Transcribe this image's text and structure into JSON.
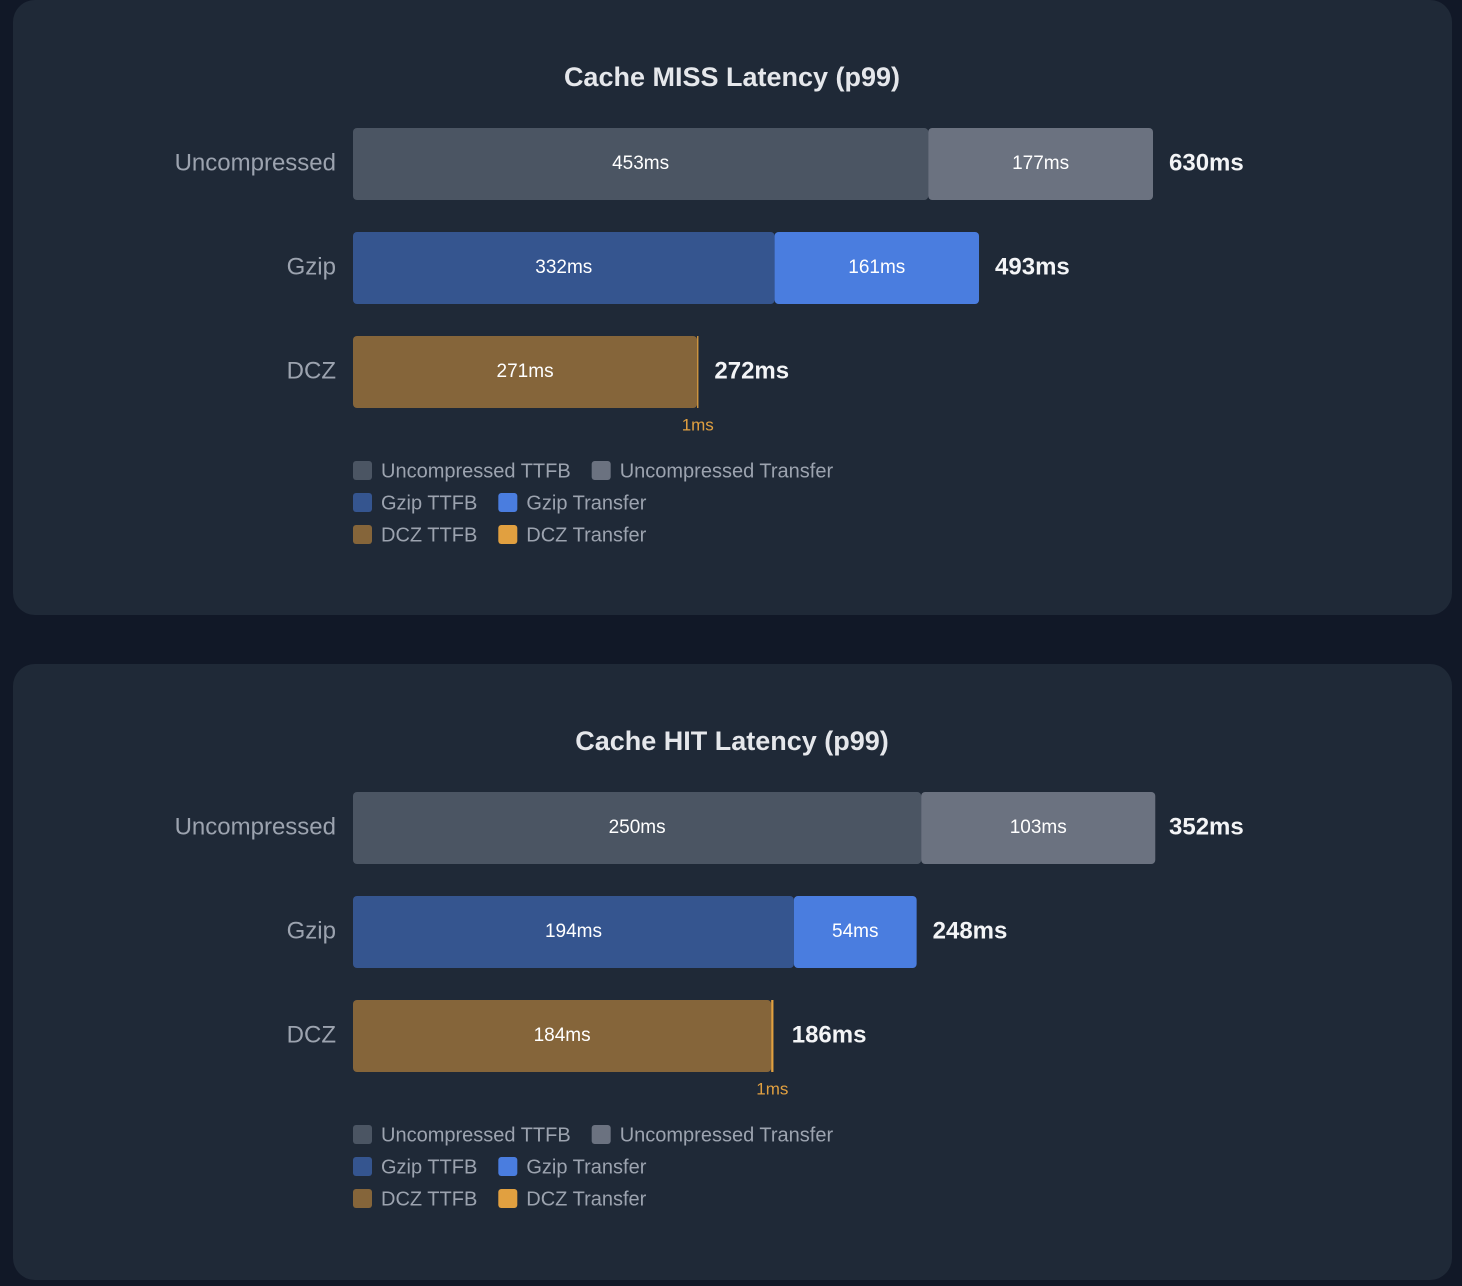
{
  "chart_data": [
    {
      "type": "stacked-bar",
      "orientation": "horizontal",
      "title": "Cache MISS Latency (p99)",
      "categories": [
        "Uncompressed",
        "Gzip",
        "DCZ"
      ],
      "series": [
        {
          "name": "Uncompressed TTFB",
          "color": "#4b5563",
          "values": [
            453,
            null,
            null
          ],
          "value_labels": [
            "453ms",
            null,
            null
          ]
        },
        {
          "name": "Uncompressed Transfer",
          "color": "#6b7280",
          "values": [
            177,
            null,
            null
          ],
          "value_labels": [
            "177ms",
            null,
            null
          ]
        },
        {
          "name": "Gzip TTFB",
          "color": "#35558f",
          "values": [
            null,
            332,
            null
          ],
          "value_labels": [
            null,
            "332ms",
            null
          ]
        },
        {
          "name": "Gzip Transfer",
          "color": "#4a7ddf",
          "values": [
            null,
            161,
            null
          ],
          "value_labels": [
            null,
            "161ms",
            null
          ]
        },
        {
          "name": "DCZ TTFB",
          "color": "#85653a",
          "values": [
            null,
            null,
            271
          ],
          "value_labels": [
            null,
            null,
            "271ms"
          ]
        },
        {
          "name": "DCZ Transfer",
          "color": "#e1a040",
          "values": [
            null,
            null,
            1
          ],
          "value_labels": [
            null,
            null,
            "1ms"
          ]
        }
      ],
      "totals": [
        630,
        493,
        272
      ],
      "total_labels": [
        "630ms",
        "493ms",
        "272ms"
      ]
    },
    {
      "type": "stacked-bar",
      "orientation": "horizontal",
      "title": "Cache HIT Latency (p99)",
      "categories": [
        "Uncompressed",
        "Gzip",
        "DCZ"
      ],
      "series": [
        {
          "name": "Uncompressed TTFB",
          "color": "#4b5563",
          "values": [
            250,
            null,
            null
          ],
          "value_labels": [
            "250ms",
            null,
            null
          ]
        },
        {
          "name": "Uncompressed Transfer",
          "color": "#6b7280",
          "values": [
            103,
            null,
            null
          ],
          "value_labels": [
            "103ms",
            null,
            null
          ]
        },
        {
          "name": "Gzip TTFB",
          "color": "#35558f",
          "values": [
            null,
            194,
            null
          ],
          "value_labels": [
            null,
            "194ms",
            null
          ]
        },
        {
          "name": "Gzip Transfer",
          "color": "#4a7ddf",
          "values": [
            null,
            54,
            null
          ],
          "value_labels": [
            null,
            "54ms",
            null
          ]
        },
        {
          "name": "DCZ TTFB",
          "color": "#85653a",
          "values": [
            null,
            null,
            184
          ],
          "value_labels": [
            null,
            null,
            "184ms"
          ]
        },
        {
          "name": "DCZ Transfer",
          "color": "#e1a040",
          "values": [
            null,
            null,
            1
          ],
          "value_labels": [
            null,
            null,
            "1ms"
          ]
        }
      ],
      "totals": [
        352,
        248,
        186
      ],
      "total_labels": [
        "352ms",
        "248ms",
        "186ms"
      ]
    }
  ]
}
